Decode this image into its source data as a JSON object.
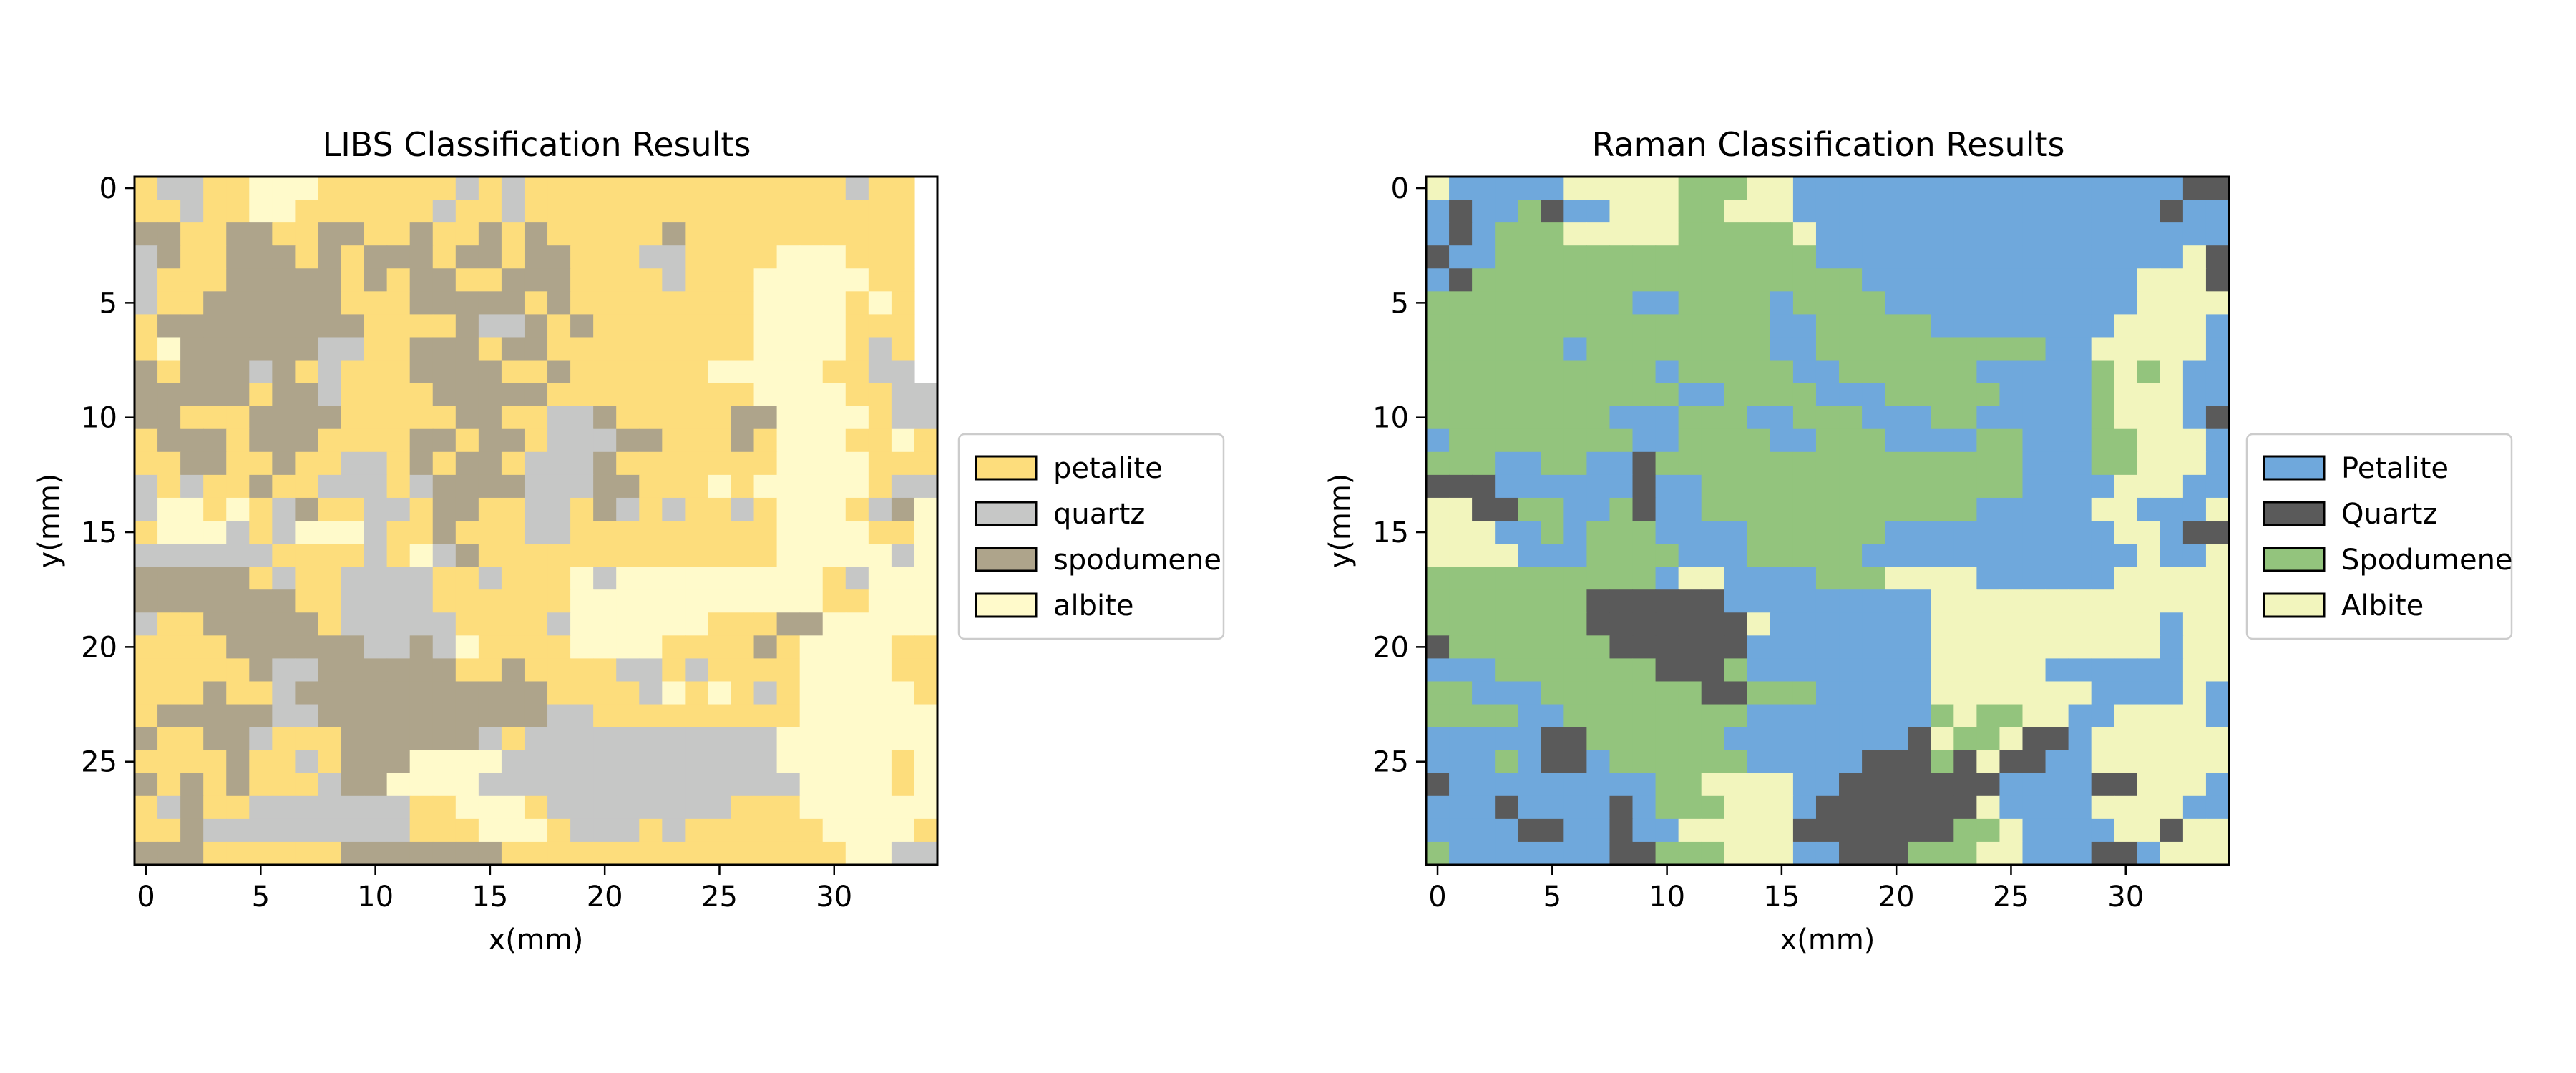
{
  "chart_data": [
    {
      "type": "heatmap",
      "title": "LIBS Classification Results",
      "xlabel": "x(mm)",
      "ylabel": "y(mm)",
      "xticks": [
        0,
        5,
        10,
        15,
        20,
        25,
        30
      ],
      "yticks": [
        0,
        5,
        10,
        15,
        20,
        25
      ],
      "xlim": [
        -0.5,
        34.5
      ],
      "ylim": [
        29.5,
        -0.5
      ],
      "grid": false,
      "legend_position": "right",
      "classes": [
        {
          "key": "P",
          "label": "petalite",
          "color": "#FDDD7C"
        },
        {
          "key": "Q",
          "label": "quartz",
          "color": "#C6C7C6"
        },
        {
          "key": "S",
          "label": "spodumene",
          "color": "#AEA48B"
        },
        {
          "key": "A",
          "label": "albite",
          "color": "#FFFACB"
        }
      ],
      "grid_rows": [
        "PQQPPAAAPPPPPPQPQPPPPPPPPPPPPPPQPP",
        "PPQPPAAPPPPPPQPPQPPPPPPPPPPPPPPPPP",
        "SSPPSSPPSSPPSPPSPSPPPPPSPPPPPPPPPP",
        "QSPPSSSPSPSSSPSSPSSPPPQQPPPPAAAPPP",
        "QPPPSSSSSPSPSSPPSSSPPPPQPPPAAAAAPP",
        "QPPSSSSSSPPPSSSSSPSPPPPPPPPAAAAPAP",
        "PSSSSSSSSSPPPPSQQSPSPPPPPPPAAAAPPP",
        "PASSSSSSQQPPSSSPSSPPPPPPPPPAAAAPQP",
        "SPSSSQSPQPPPSSSSPPSPPPPPPAAAAAPPQQ",
        "SSSSSPSSQPPPPSSSSSPPPPPPPPPAAAAPPQQ",
        "SSPPPSSSSPPPPPSSPPQQSPPPPPSSAAAAPQQ",
        "PSSSPSSSPPPPSSPSSPQQQSSPPPSPAAAPPAP",
        "PPSSPPSPPQQPSPSSPQQQSPPPPPPPAAAAPPP",
        "QPQPPSPPQQQPQSSSSQQQSSPPPAPAAAAAPQQ",
        "QAAPAPQSPPQQPSSPPQQPSQPQPPQPAAAPQSA",
        "PAAAQPQAAAQPPSPPPQQPPPPPPPPPAAAAPPA",
        "QQQQQQPPPPQPAQSPPPPPPPPPPPPPAAAAAQA",
        "SSSSSPQPPQQQQPPQPPPAQAAAAAAAAAPQAAA",
        "SSSSSSSPPQQQQPPPPPPAAAAAAAAAAAPPAAA",
        "QPPSSSSSPQQQQQPPPPQAAAAAAPPPSSAAAAA",
        "PPPPSSSSSSQQSQAPPPPAAAAPPPPSPAAAAPP",
        "PPPPPSQQSSSSSSPPSPPPPQQPQPPPPAAAAPP",
        "PPPSPPQSSSSSSSSSSSPPPPQAPAPQPAAAAAP",
        "PSSSSSQQSSSSSSSSSSQQPPPPPPPPPAAAAAA",
        "SPPSSQPPPSSSSSSQPQQQQQQQQQQQAAAAAAA",
        "PPPPSPPQPSSSAAAAQQQQQQQQQQQQAAAAAPA",
        "SPSPSPPPQSSAAAAQQQQQQQQQQQQQQAAAAPA",
        "PQSPPQQQQQQQPPAAAPQQQQQQQQPPPAAAAAA",
        "PPSQQQQQQQQQPPPAAAPQQQPQPPPPPPAAAAP",
        "SSSPPPPPPSSSSSSSPPPPPPPPPPPPPPPAAQQP"
      ]
    },
    {
      "type": "heatmap",
      "title": "Raman Classification Results",
      "xlabel": "x(mm)",
      "ylabel": "y(mm)",
      "xticks": [
        0,
        5,
        10,
        15,
        20,
        25,
        30
      ],
      "yticks": [
        0,
        5,
        10,
        15,
        20,
        25
      ],
      "xlim": [
        -0.5,
        34.5
      ],
      "ylim": [
        29.5,
        -0.5
      ],
      "grid": false,
      "legend_position": "right",
      "classes": [
        {
          "key": "P",
          "label": "Petalite",
          "color": "#6FA8DC"
        },
        {
          "key": "Q",
          "label": "Quartz",
          "color": "#5A5A5A"
        },
        {
          "key": "S",
          "label": "Spodumene",
          "color": "#93C47D"
        },
        {
          "key": "A",
          "label": "Albite",
          "color": "#F2F5BD"
        }
      ],
      "grid_rows": [
        "APPPPPAAAAASSSAAPPPPPPPPPPPPPPPPPQQ",
        "PQPPSQPPAAASSAAAPPPPPPPPPPPPPPPPQPP",
        "PQPSSSAAAAASSSSSAPPPPPPPPPPPPPPPPPP",
        "QPPSSSSSSSSSSSSSSPPPPPPPPPPPPPPPPAQ",
        "PQSSSSSSSSSSSSSSSSSPPPPPPPPPPPPAAAQ",
        "SSSSSSSSSPPSSSSPSSSSPPPPPPPPPPPAAAA",
        "SSSSSSSSSSSSSSSPPSSSSSPPPPPPPPAAAAP",
        "SSSSSSPSSSSSSSSPPSSSSSSSSSSPPAAAAAP",
        "SSSSSSSSSSPSSSSSPPSSSSSSPPPPPSASAPP",
        "SSSSSSSSSSSPPSSSSPPPSSSSSPPPPSAAAPP",
        "SSSSSSSSPPPSSSPPSSSPPPSSPPPPPSAAAPQ",
        "PSSSSSSSSPPSSSSPPSSSPPPPSSPPPSSAAAP",
        "SSSPPSSPPQSSSSSSSSSSSSSSSSPPPSSAAAP",
        "QQQPPPPPPQPPSSSSSSSSSSSSSSPPPPAAAPP",
        "AAQQSSPPSQPPSSSSSSSSSSSSPPPPPAAPPPA",
        "AAAPPSPSSSPPPPSSSSSSPPPPPPPPPPAAPQQ",
        "AAAAPPPSSSSPPPSSSSSPPPPPPPPPPPPAPPA",
        "SSSSSSSSSSPAAPPPPSSSAAAAPPPPPPAAAAA",
        "SSSSSSSQQQQQQPPPPPPPPPAAAAAAAAAAAAA",
        "SSSSSSSQQQQQQQAPPPPPPPAAAAAAAAAAPAA",
        "QSSSSSSSQQQQQQPPPPPPPPAAAAAAAAAAPAA",
        "PPPSSSSSSSQQQSPPPPPPPPAAAAAPPPPPPAA",
        "SSPPPSSSSSSSQQSSSPPPPPAAAAAAAPPPPAP",
        "SSSSPPSSSSSSSSPPPPPPPPSASSAAPPAAAAP",
        "PPPPPQQSSSSSSPPPPPPPPQASSAQQPAAAAAA",
        "PPPSPQQPSSSSSSPPPPPQQQSQAQQPPAAAAAA",
        "QPPPPPPPPPSSAAAAPPQQQQQQQPPPPQQAAAP",
        "PPPQPPPPQPSSSAAAPQQQQQQQAPPPPAAAAPP",
        "PPPPQQPPQPPAAAAAQQQQQQQSSAPPPPAAQAA",
        "SPPPPPPPQQSSSAAAPPQQQSSSAAPPPQQPAAA"
      ]
    }
  ]
}
